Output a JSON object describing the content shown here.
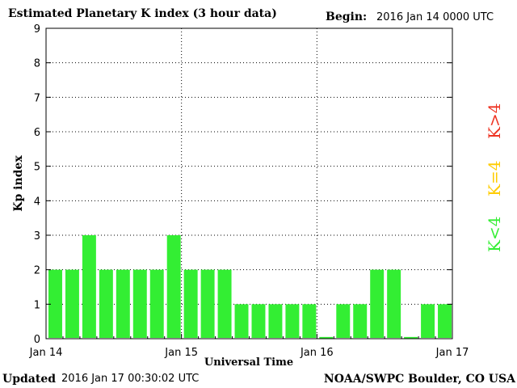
{
  "header": {
    "title": "Estimated Planetary K index (3 hour data)",
    "begin_label": "Begin:",
    "begin_value": "2016 Jan 14 0000 UTC"
  },
  "footer": {
    "updated_label": "Updated",
    "updated_value": "2016 Jan 17 00:30:02 UTC",
    "credit": "NOAA/SWPC Boulder, CO USA"
  },
  "legend": {
    "low": {
      "label": "K<4",
      "color": "#33ee33"
    },
    "mid": {
      "label": "K=4",
      "color": "#ffcc00"
    },
    "high": {
      "label": "K>4",
      "color": "#ee3322"
    }
  },
  "chart_data": {
    "type": "bar",
    "title": "Estimated Planetary K index (3 hour data)",
    "xlabel": "Universal Time",
    "ylabel": "Kp index",
    "ylim": [
      0,
      9
    ],
    "yticks": [
      "0",
      "1",
      "2",
      "3",
      "4",
      "5",
      "6",
      "7",
      "8",
      "9"
    ],
    "xticks": [
      "Jan 14",
      "Jan 15",
      "Jan 16",
      "Jan 17"
    ],
    "grid": true,
    "bar_color": "#33ee33",
    "values": [
      2,
      2,
      3,
      2,
      2,
      2,
      2,
      3,
      2,
      2,
      2,
      1,
      1,
      1,
      1,
      1,
      0.05,
      1,
      1,
      2,
      2,
      0.05,
      1,
      1
    ]
  }
}
